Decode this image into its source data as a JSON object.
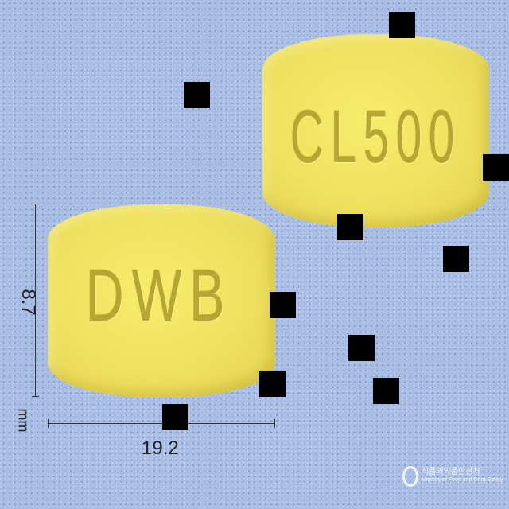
{
  "image": {
    "kind": "pill identification photo",
    "background_color": "#a8bde6",
    "pill_color": "#efe160"
  },
  "pills": [
    {
      "name": "front-pill",
      "imprint": "DWB"
    },
    {
      "name": "back-pill",
      "imprint": "CL500"
    }
  ],
  "dimensions": {
    "height": "8.7",
    "width": "19.2",
    "unit": "mm"
  },
  "watermark": {
    "title": "식품의약품안전처",
    "subtitle": "Ministry of Food and Drug Safety"
  }
}
